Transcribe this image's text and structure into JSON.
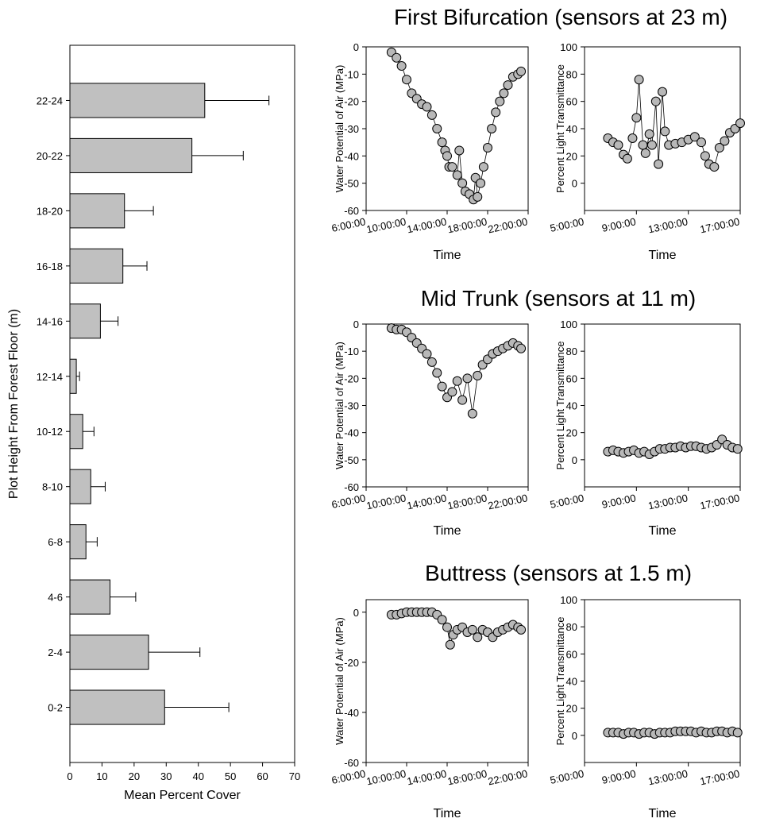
{
  "figure": {
    "section_titles": [
      "First Bifurcation (sensors at 23 m)",
      "Mid Trunk (sensors at 11 m)",
      "Buttress (sensors at 1.5 m)"
    ]
  },
  "chart_data": [
    {
      "type": "bar",
      "orientation": "horizontal",
      "categories": [
        "0-2",
        "2-4",
        "4-6",
        "6-8",
        "8-10",
        "10-12",
        "12-14",
        "14-16",
        "16-18",
        "18-20",
        "20-22",
        "22-24"
      ],
      "values": [
        29.5,
        24.5,
        12.5,
        5,
        6.5,
        4,
        2,
        9.5,
        16.5,
        17,
        38,
        42
      ],
      "errors": [
        20,
        16,
        8,
        3.5,
        4.5,
        3.5,
        1,
        5.5,
        7.5,
        9,
        16,
        20
      ],
      "xlabel": "Mean Percent Cover",
      "ylabel": "Plot Height From Forest Floor (m)",
      "xlim": [
        0,
        70
      ],
      "xticks": [
        "0",
        "10",
        "20",
        "30",
        "40",
        "50",
        "60",
        "70"
      ],
      "grid": false,
      "bar_color": "#c0c0c0"
    },
    {
      "type": "scatter",
      "section": "First Bifurcation (sensors at 23 m)",
      "xlabel": "Time",
      "ylabel": "Water Potential of Air (MPa)",
      "xlim": [
        6,
        22
      ],
      "xticks": [
        "6:00:00",
        "10:00:00",
        "14:00:00",
        "18:00:00",
        "22:00:00"
      ],
      "ylim": [
        -60,
        0
      ],
      "yticks": [
        "0",
        "-10",
        "-20",
        "-30",
        "-40",
        "-50",
        "-60"
      ],
      "points": [
        [
          8.5,
          -2
        ],
        [
          9,
          -4
        ],
        [
          9.5,
          -7
        ],
        [
          10,
          -12
        ],
        [
          10.5,
          -17
        ],
        [
          11,
          -19
        ],
        [
          11.5,
          -21
        ],
        [
          12,
          -22
        ],
        [
          12.5,
          -25
        ],
        [
          13,
          -30
        ],
        [
          13.5,
          -35
        ],
        [
          14,
          -40
        ],
        [
          14.5,
          -44
        ],
        [
          15,
          -47
        ],
        [
          15.5,
          -50
        ],
        [
          15.8,
          -53
        ],
        [
          16.2,
          -54
        ],
        [
          16.6,
          -56
        ],
        [
          17,
          -55
        ],
        [
          17.3,
          -50
        ],
        [
          17.6,
          -44
        ],
        [
          18,
          -37
        ],
        [
          18.4,
          -30
        ],
        [
          18.8,
          -24
        ],
        [
          19.2,
          -20
        ],
        [
          19.6,
          -17
        ],
        [
          20,
          -14
        ],
        [
          20.5,
          -11
        ],
        [
          21,
          -10
        ],
        [
          21.3,
          -9
        ],
        [
          15.2,
          -38
        ],
        [
          14.2,
          -44
        ],
        [
          13.8,
          -38
        ],
        [
          16.8,
          -48
        ]
      ],
      "marker_color": "#b8b8b8"
    },
    {
      "type": "scatter",
      "section": "First Bifurcation (sensors at 23 m)",
      "xlabel": "Time",
      "ylabel": "Percent Light Transmittance",
      "xlim": [
        5,
        17
      ],
      "xticks": [
        "5:00:00",
        "9:00:00",
        "13:00:00",
        "17:00:00"
      ],
      "ylim": [
        -20,
        100
      ],
      "yticks": [
        "0",
        "20",
        "40",
        "60",
        "80",
        "100"
      ],
      "points": [
        [
          6.8,
          33
        ],
        [
          7.2,
          30
        ],
        [
          7.6,
          28
        ],
        [
          8,
          21
        ],
        [
          8.3,
          18
        ],
        [
          8.7,
          33
        ],
        [
          9,
          48
        ],
        [
          9.2,
          76
        ],
        [
          9.5,
          28
        ],
        [
          9.7,
          22
        ],
        [
          10,
          36
        ],
        [
          10.2,
          28
        ],
        [
          10.5,
          60
        ],
        [
          10.7,
          14
        ],
        [
          11,
          67
        ],
        [
          11.2,
          38
        ],
        [
          11.5,
          28
        ],
        [
          12,
          29
        ],
        [
          12.5,
          30
        ],
        [
          13,
          32
        ],
        [
          13.5,
          34
        ],
        [
          14,
          30
        ],
        [
          14.3,
          20
        ],
        [
          14.6,
          14
        ],
        [
          15,
          12
        ],
        [
          15.4,
          26
        ],
        [
          15.8,
          31
        ],
        [
          16.2,
          37
        ],
        [
          16.6,
          40
        ],
        [
          17,
          44
        ]
      ],
      "marker_color": "#b8b8b8"
    },
    {
      "type": "scatter",
      "section": "Mid Trunk (sensors at 11 m)",
      "xlabel": "Time",
      "ylabel": "Water Potential of Air (MPa)",
      "xlim": [
        6,
        22
      ],
      "xticks": [
        "6:00:00",
        "10:00:00",
        "14:00:00",
        "18:00:00",
        "22:00:00"
      ],
      "ylim": [
        -60,
        0
      ],
      "yticks": [
        "0",
        "-10",
        "-20",
        "-30",
        "-40",
        "-50",
        "-60"
      ],
      "points": [
        [
          8.5,
          -1.5
        ],
        [
          9,
          -2
        ],
        [
          9.5,
          -2
        ],
        [
          10,
          -3
        ],
        [
          10.5,
          -5
        ],
        [
          11,
          -7
        ],
        [
          11.5,
          -9
        ],
        [
          12,
          -11
        ],
        [
          12.5,
          -14
        ],
        [
          13,
          -18
        ],
        [
          13.5,
          -23
        ],
        [
          14,
          -27
        ],
        [
          14.5,
          -25
        ],
        [
          15,
          -21
        ],
        [
          15.5,
          -28
        ],
        [
          16,
          -20
        ],
        [
          16.5,
          -33
        ],
        [
          17,
          -19
        ],
        [
          17.5,
          -15
        ],
        [
          18,
          -13
        ],
        [
          18.5,
          -11
        ],
        [
          19,
          -10
        ],
        [
          19.5,
          -9
        ],
        [
          20,
          -8
        ],
        [
          20.5,
          -7
        ],
        [
          21,
          -8
        ],
        [
          21.3,
          -9
        ]
      ],
      "marker_color": "#b8b8b8"
    },
    {
      "type": "scatter",
      "section": "Mid Trunk (sensors at 11 m)",
      "xlabel": "Time",
      "ylabel": "Percent Light Transmittance",
      "xlim": [
        5,
        17
      ],
      "xticks": [
        "5:00:00",
        "9:00:00",
        "13:00:00",
        "17:00:00"
      ],
      "ylim": [
        -20,
        100
      ],
      "yticks": [
        "0",
        "20",
        "40",
        "60",
        "80",
        "100"
      ],
      "points": [
        [
          6.8,
          6
        ],
        [
          7.2,
          7
        ],
        [
          7.6,
          6
        ],
        [
          8,
          5
        ],
        [
          8.4,
          6
        ],
        [
          8.8,
          7
        ],
        [
          9.2,
          5
        ],
        [
          9.6,
          6
        ],
        [
          10,
          4
        ],
        [
          10.4,
          6
        ],
        [
          10.8,
          8
        ],
        [
          11.2,
          8
        ],
        [
          11.6,
          9
        ],
        [
          12,
          9
        ],
        [
          12.4,
          10
        ],
        [
          12.8,
          9
        ],
        [
          13.2,
          10
        ],
        [
          13.6,
          10
        ],
        [
          14,
          9
        ],
        [
          14.4,
          8
        ],
        [
          14.8,
          9
        ],
        [
          15.2,
          11
        ],
        [
          15.6,
          15
        ],
        [
          16,
          11
        ],
        [
          16.4,
          9
        ],
        [
          16.8,
          8
        ]
      ],
      "marker_color": "#b8b8b8"
    },
    {
      "type": "scatter",
      "section": "Buttress (sensors at 1.5 m)",
      "xlabel": "Time",
      "ylabel": "Water Potential of Air (MPa)",
      "xlim": [
        6,
        22
      ],
      "xticks": [
        "6:00:00",
        "10:00:00",
        "14:00:00",
        "18:00:00",
        "22:00:00"
      ],
      "ylim": [
        -60,
        5
      ],
      "yticks": [
        "0",
        "-20",
        "-40",
        "-60"
      ],
      "points": [
        [
          8.5,
          -1
        ],
        [
          9,
          -1
        ],
        [
          9.5,
          -0.5
        ],
        [
          10,
          0
        ],
        [
          10.5,
          0
        ],
        [
          11,
          0
        ],
        [
          11.5,
          0
        ],
        [
          12,
          0
        ],
        [
          12.5,
          0
        ],
        [
          13,
          -1
        ],
        [
          13.5,
          -3
        ],
        [
          14,
          -6
        ],
        [
          14.3,
          -13
        ],
        [
          14.6,
          -9
        ],
        [
          15,
          -7
        ],
        [
          15.5,
          -6
        ],
        [
          16,
          -8
        ],
        [
          16.5,
          -7
        ],
        [
          17,
          -10
        ],
        [
          17.5,
          -7
        ],
        [
          18,
          -8
        ],
        [
          18.5,
          -10
        ],
        [
          19,
          -8
        ],
        [
          19.5,
          -7
        ],
        [
          20,
          -6
        ],
        [
          20.5,
          -5
        ],
        [
          21,
          -6
        ],
        [
          21.3,
          -7
        ]
      ],
      "marker_color": "#b8b8b8"
    },
    {
      "type": "scatter",
      "section": "Buttress (sensors at 1.5 m)",
      "xlabel": "Time",
      "ylabel": "Percent Light Transmittance",
      "xlim": [
        5,
        17
      ],
      "xticks": [
        "5:00:00",
        "9:00:00",
        "13:00:00",
        "17:00:00"
      ],
      "ylim": [
        -20,
        100
      ],
      "yticks": [
        "0",
        "20",
        "40",
        "60",
        "80",
        "100"
      ],
      "points": [
        [
          6.8,
          2
        ],
        [
          7.2,
          2
        ],
        [
          7.6,
          2
        ],
        [
          8,
          1
        ],
        [
          8.4,
          2
        ],
        [
          8.8,
          2
        ],
        [
          9.2,
          1
        ],
        [
          9.6,
          2
        ],
        [
          10,
          2
        ],
        [
          10.4,
          1
        ],
        [
          10.8,
          2
        ],
        [
          11.2,
          2
        ],
        [
          11.6,
          2
        ],
        [
          12,
          3
        ],
        [
          12.4,
          3
        ],
        [
          12.8,
          3
        ],
        [
          13.2,
          3
        ],
        [
          13.6,
          2
        ],
        [
          14,
          3
        ],
        [
          14.4,
          2
        ],
        [
          14.8,
          2
        ],
        [
          15.2,
          3
        ],
        [
          15.6,
          3
        ],
        [
          16,
          2
        ],
        [
          16.4,
          3
        ],
        [
          16.8,
          2
        ]
      ],
      "marker_color": "#b8b8b8"
    }
  ]
}
